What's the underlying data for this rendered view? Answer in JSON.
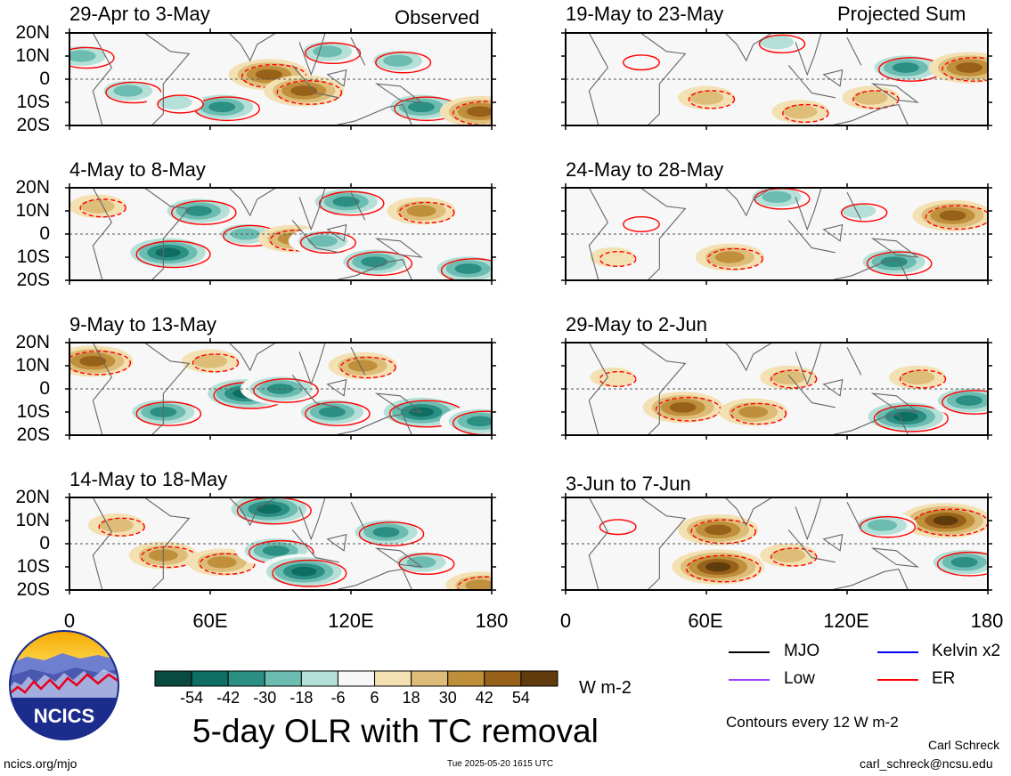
{
  "figure": {
    "main_title": "5-day OLR with TC removal",
    "units": "W m-2",
    "contour_note": "Contours every 12 W m-2",
    "left_header_label": "Observed",
    "right_header_label": "Projected Sum",
    "author": "Carl Schreck",
    "email": "carl_schreck@ncsu.edu",
    "site": "ncics.org/mjo",
    "timestamp": "Tue 2025-05-20 1615 UTC",
    "logo_text": "NCICS"
  },
  "colorbar": {
    "ticks": [
      "-54",
      "-42",
      "-30",
      "-18",
      "-6",
      "6",
      "18",
      "30",
      "42",
      "54"
    ],
    "colors": [
      "#0b4a3f",
      "#0f6e63",
      "#2b8f84",
      "#6dbcb1",
      "#b5e0d8",
      "#f7f7f7",
      "#f3e1b4",
      "#ddbd78",
      "#c08f3b",
      "#98611a",
      "#603b0c"
    ]
  },
  "legend": [
    {
      "name": "MJO",
      "color": "#000000"
    },
    {
      "name": "Kelvin x2",
      "color": "#0000ff"
    },
    {
      "name": "Low",
      "color": "#a040ff"
    },
    {
      "name": "ER",
      "color": "#ff0000"
    }
  ],
  "axes": {
    "y_ticks": [
      "20N",
      "10N",
      "0",
      "10S",
      "20S"
    ],
    "x_ticks_left": [
      "0",
      "60E",
      "120E",
      "180"
    ],
    "x_ticks_right": [
      "0",
      "60E",
      "120E",
      "180"
    ]
  },
  "chart_data": [
    {
      "type": "heatmap",
      "title": "29-Apr to 3-May",
      "column": "Observed",
      "xlim": [
        0,
        180
      ],
      "ylim": [
        -20,
        20
      ],
      "anomalies": [
        {
          "lon": 5,
          "lat": 10,
          "value": -30
        },
        {
          "lon": 25,
          "lat": -5,
          "value": -30
        },
        {
          "lon": 65,
          "lat": -12,
          "value": -42
        },
        {
          "lon": 85,
          "lat": 2,
          "value": 42
        },
        {
          "lon": 100,
          "lat": -5,
          "value": 42
        },
        {
          "lon": 110,
          "lat": 12,
          "value": -30
        },
        {
          "lon": 140,
          "lat": 8,
          "value": -30
        },
        {
          "lon": 150,
          "lat": -12,
          "value": -42
        },
        {
          "lon": 175,
          "lat": -14,
          "value": 42
        },
        {
          "lon": 45,
          "lat": -10,
          "value": -18
        }
      ]
    },
    {
      "type": "heatmap",
      "title": "4-May to 8-May",
      "column": "Observed",
      "xlim": [
        0,
        180
      ],
      "ylim": [
        -20,
        20
      ],
      "anomalies": [
        {
          "lon": 42,
          "lat": -8,
          "value": -54
        },
        {
          "lon": 55,
          "lat": 10,
          "value": -42
        },
        {
          "lon": 75,
          "lat": 0,
          "value": -30
        },
        {
          "lon": 95,
          "lat": -2,
          "value": 30
        },
        {
          "lon": 108,
          "lat": -3,
          "value": -30
        },
        {
          "lon": 118,
          "lat": 14,
          "value": -42
        },
        {
          "lon": 150,
          "lat": 10,
          "value": 30
        },
        {
          "lon": 130,
          "lat": -12,
          "value": -42
        },
        {
          "lon": 170,
          "lat": -15,
          "value": -42
        },
        {
          "lon": 12,
          "lat": 12,
          "value": 18
        }
      ]
    },
    {
      "type": "heatmap",
      "title": "9-May to 13-May",
      "column": "Observed",
      "xlim": [
        0,
        180
      ],
      "ylim": [
        -20,
        20
      ],
      "anomalies": [
        {
          "lon": 10,
          "lat": 12,
          "value": 42
        },
        {
          "lon": 40,
          "lat": -10,
          "value": -42
        },
        {
          "lon": 75,
          "lat": -2,
          "value": -54
        },
        {
          "lon": 90,
          "lat": 0,
          "value": -42
        },
        {
          "lon": 112,
          "lat": -10,
          "value": -42
        },
        {
          "lon": 150,
          "lat": -10,
          "value": -54
        },
        {
          "lon": 175,
          "lat": -14,
          "value": -42
        },
        {
          "lon": 125,
          "lat": 10,
          "value": 30
        },
        {
          "lon": 60,
          "lat": 12,
          "value": 18
        }
      ]
    },
    {
      "type": "heatmap",
      "title": "14-May to 18-May",
      "column": "Observed",
      "xlim": [
        0,
        180
      ],
      "ylim": [
        -20,
        20
      ],
      "anomalies": [
        {
          "lon": 40,
          "lat": -5,
          "value": 30
        },
        {
          "lon": 65,
          "lat": -8,
          "value": 30
        },
        {
          "lon": 85,
          "lat": 15,
          "value": -54
        },
        {
          "lon": 88,
          "lat": -3,
          "value": -42
        },
        {
          "lon": 100,
          "lat": -12,
          "value": -54
        },
        {
          "lon": 135,
          "lat": 5,
          "value": -42
        },
        {
          "lon": 150,
          "lat": -8,
          "value": -30
        },
        {
          "lon": 175,
          "lat": -18,
          "value": 30
        },
        {
          "lon": 20,
          "lat": 8,
          "value": 18
        }
      ]
    },
    {
      "type": "heatmap",
      "title": "19-May to 23-May",
      "column": "Projected Sum",
      "xlim": [
        0,
        180
      ],
      "ylim": [
        -20,
        20
      ],
      "anomalies": [
        {
          "lon": 30,
          "lat": 8,
          "value": -6
        },
        {
          "lon": 60,
          "lat": -8,
          "value": 18
        },
        {
          "lon": 90,
          "lat": 16,
          "value": -18
        },
        {
          "lon": 145,
          "lat": 5,
          "value": -42
        },
        {
          "lon": 172,
          "lat": 5,
          "value": 42
        },
        {
          "lon": 130,
          "lat": -8,
          "value": 18
        },
        {
          "lon": 100,
          "lat": -14,
          "value": 18
        }
      ]
    },
    {
      "type": "heatmap",
      "title": "24-May to 28-May",
      "column": "Projected Sum",
      "xlim": [
        0,
        180
      ],
      "ylim": [
        -20,
        20
      ],
      "anomalies": [
        {
          "lon": 70,
          "lat": -10,
          "value": 30
        },
        {
          "lon": 90,
          "lat": 16,
          "value": -30
        },
        {
          "lon": 125,
          "lat": 10,
          "value": -18
        },
        {
          "lon": 165,
          "lat": 8,
          "value": 42
        },
        {
          "lon": 140,
          "lat": -12,
          "value": -42
        },
        {
          "lon": 30,
          "lat": 5,
          "value": -6
        },
        {
          "lon": 20,
          "lat": -10,
          "value": 6
        }
      ]
    },
    {
      "type": "heatmap",
      "title": "29-May to 2-Jun",
      "column": "Projected Sum",
      "xlim": [
        0,
        180
      ],
      "ylim": [
        -20,
        20
      ],
      "anomalies": [
        {
          "lon": 50,
          "lat": -8,
          "value": 42
        },
        {
          "lon": 80,
          "lat": -10,
          "value": 30
        },
        {
          "lon": 95,
          "lat": 5,
          "value": 18
        },
        {
          "lon": 145,
          "lat": -12,
          "value": -54
        },
        {
          "lon": 172,
          "lat": -5,
          "value": -42
        },
        {
          "lon": 150,
          "lat": 5,
          "value": 18
        },
        {
          "lon": 20,
          "lat": 5,
          "value": 6
        }
      ]
    },
    {
      "type": "heatmap",
      "title": "3-Jun to 7-Jun",
      "column": "Projected Sum",
      "xlim": [
        0,
        180
      ],
      "ylim": [
        -20,
        20
      ],
      "anomalies": [
        {
          "lon": 65,
          "lat": -10,
          "value": 54
        },
        {
          "lon": 65,
          "lat": 6,
          "value": 42
        },
        {
          "lon": 162,
          "lat": 10,
          "value": 54
        },
        {
          "lon": 170,
          "lat": -8,
          "value": -42
        },
        {
          "lon": 135,
          "lat": 8,
          "value": -30
        },
        {
          "lon": 95,
          "lat": -5,
          "value": 18
        },
        {
          "lon": 20,
          "lat": 8,
          "value": -6
        }
      ]
    }
  ]
}
